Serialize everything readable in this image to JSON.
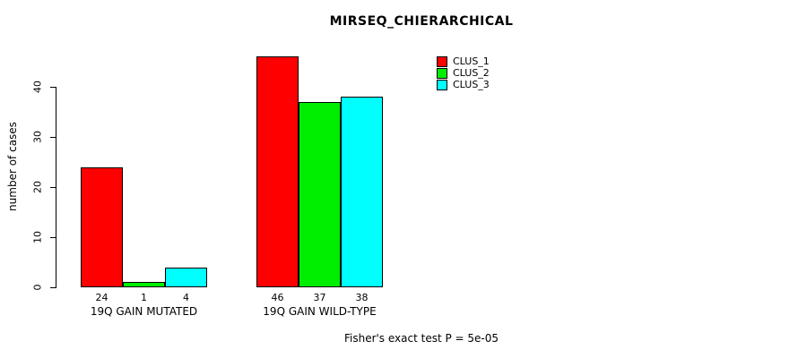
{
  "chart_data": {
    "type": "bar",
    "title": "MIRSEQ_CHIERARCHICAL",
    "ylabel": "number of cases",
    "xlabel": "",
    "categories": [
      "19Q GAIN MUTATED",
      "19Q GAIN WILD-TYPE"
    ],
    "series": [
      {
        "name": "CLUS_1",
        "color": "#FF0000",
        "values": [
          24,
          46
        ]
      },
      {
        "name": "CLUS_2",
        "color": "#00EE00",
        "values": [
          1,
          37
        ]
      },
      {
        "name": "CLUS_3",
        "color": "#00FFFF",
        "values": [
          4,
          38
        ]
      }
    ],
    "yticks": [
      0,
      10,
      20,
      30,
      40
    ],
    "ylim": [
      0,
      46
    ],
    "grid": false,
    "legend_position": "top-right",
    "bar_value_labels": [
      [
        24,
        1,
        4
      ],
      [
        46,
        37,
        38
      ]
    ]
  },
  "footer": {
    "note": "Fisher's exact test P = 5e-05"
  },
  "colors": {
    "background": "#FFFFFF",
    "axis": "#000000",
    "text": "#000000"
  }
}
